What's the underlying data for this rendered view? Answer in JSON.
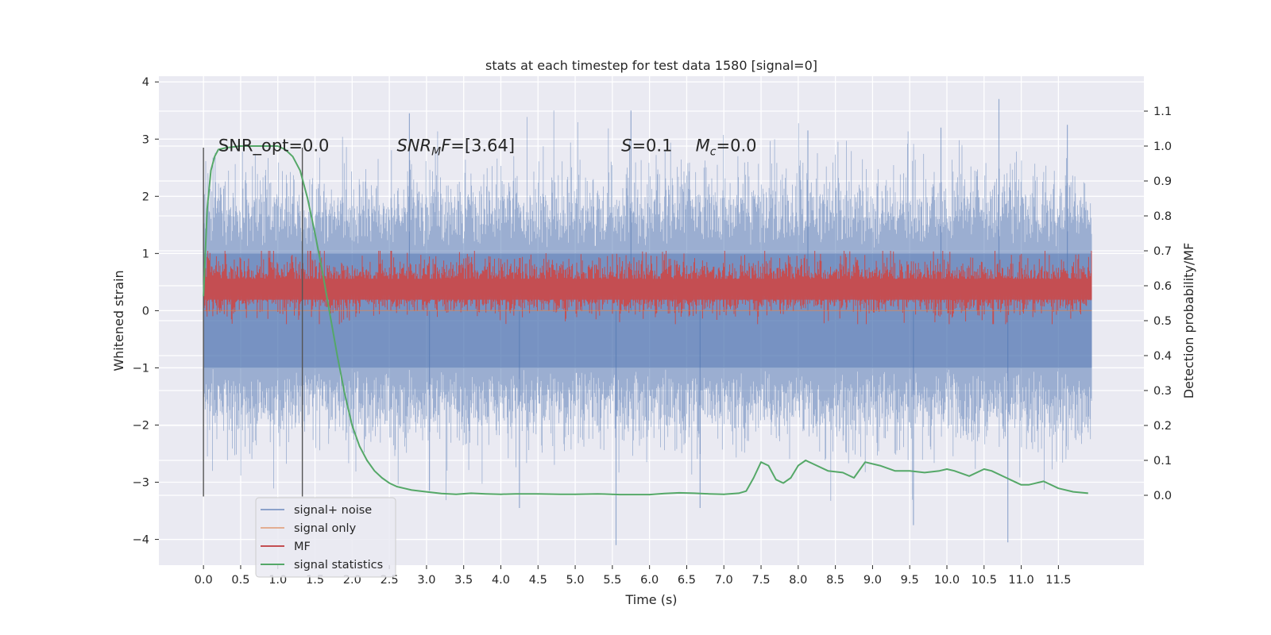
{
  "chart_data": {
    "type": "line",
    "title": "stats at each timestep for test data 1580 [signal=0]",
    "xlabel": "Time (s)",
    "ylabel": "Whitened strain",
    "y2label": "Detection probability/MF",
    "xlim": [
      -0.6,
      12.65
    ],
    "ylim": [
      -4.45,
      4.1
    ],
    "y2lim": [
      -0.2,
      1.2
    ],
    "x_ticks": [
      0.0,
      0.5,
      1.0,
      1.5,
      2.0,
      2.5,
      3.0,
      3.5,
      4.0,
      4.5,
      5.0,
      5.5,
      6.0,
      6.5,
      7.0,
      7.5,
      8.0,
      8.5,
      9.0,
      9.5,
      10.0,
      10.5,
      11.0,
      11.5
    ],
    "x_tick_labels": [
      "0.0",
      "0.5",
      "1.0",
      "1.5",
      "2.0",
      "2.5",
      "3.0",
      "3.5",
      "4.0",
      "4.5",
      "5.0",
      "5.5",
      "6.0",
      "6.5",
      "7.0",
      "7.5",
      "8.0",
      "8.5",
      "9.0",
      "9.5",
      "10.0",
      "10.5",
      "11.0",
      "11.5"
    ],
    "y_ticks": [
      -4,
      -3,
      -2,
      -1,
      0,
      1,
      2,
      3,
      4
    ],
    "y_tick_labels": [
      "−4",
      "−3",
      "−2",
      "−1",
      "0",
      "1",
      "2",
      "3",
      "4"
    ],
    "y2_ticks": [
      0.0,
      0.1,
      0.2,
      0.3,
      0.4,
      0.5,
      0.6,
      0.7,
      0.8,
      0.9,
      1.0,
      1.1
    ],
    "y2_tick_labels": [
      "0.0",
      "0.1",
      "0.2",
      "0.3",
      "0.4",
      "0.5",
      "0.6",
      "0.7",
      "0.8",
      "0.9",
      "1.0",
      "1.1"
    ],
    "grid": true,
    "legend_position": "lower-left",
    "vertical_lines": [
      {
        "x": 0.0,
        "y_from": -3.25,
        "y_to": 2.85
      },
      {
        "x": 1.33,
        "y_from": -3.25,
        "y_to": 2.85
      }
    ],
    "annotations": [
      {
        "text": "SNR_opt=0.0",
        "x": 0.2,
        "y": 2.8,
        "style": "normal"
      },
      {
        "text": "SNR",
        "sub": "M",
        "after": "F=[3.64]",
        "x": 2.6,
        "y": 2.8,
        "style": "math"
      },
      {
        "text": "S",
        "after": "=0.1",
        "x": 5.62,
        "y": 2.8,
        "style": "math"
      },
      {
        "text": "M",
        "sub": "c",
        "after": "=0.0",
        "x": 6.62,
        "y": 2.8,
        "style": "math"
      }
    ],
    "series": [
      {
        "name": "signal+ noise",
        "color": "#4c72b0",
        "alpha": 0.5,
        "axis": "left",
        "x_range": [
          0.0,
          11.95
        ],
        "style": "dense noise",
        "typical_range": [
          -1.4,
          1.6
        ],
        "notable_peaks": [
          [
            2.77,
            3.45
          ],
          [
            10.7,
            3.7
          ],
          [
            8.13,
            3.15
          ],
          [
            11.62,
            3.25
          ],
          [
            5.75,
            3.5
          ],
          [
            9.92,
            3.2
          ]
        ],
        "notable_troughs": [
          [
            5.55,
            -4.1
          ],
          [
            10.82,
            -4.05
          ],
          [
            9.55,
            -3.75
          ],
          [
            4.25,
            -3.45
          ],
          [
            6.68,
            -3.45
          ],
          [
            3.04,
            -3.15
          ]
        ]
      },
      {
        "name": "signal only",
        "color": "#dd8452",
        "axis": "left",
        "x": [
          0.0,
          11.95
        ],
        "y": [
          0.0,
          0.0
        ]
      },
      {
        "name": "MF",
        "color": "#c44e52",
        "axis": "right",
        "x_range": [
          0.0,
          11.95
        ],
        "style": "dense noise",
        "typical_range": [
          0.53,
          0.66
        ],
        "max": 0.7,
        "min": 0.49
      },
      {
        "name": "signal statistics",
        "color": "#55a868",
        "axis": "right",
        "x": [
          0.0,
          0.05,
          0.1,
          0.15,
          0.2,
          0.3,
          0.5,
          0.8,
          1.0,
          1.1,
          1.2,
          1.3,
          1.4,
          1.5,
          1.6,
          1.7,
          1.8,
          1.9,
          2.0,
          2.1,
          2.2,
          2.3,
          2.4,
          2.5,
          2.6,
          2.8,
          3.0,
          3.2,
          3.4,
          3.6,
          3.8,
          4.0,
          4.2,
          4.5,
          4.8,
          5.0,
          5.3,
          5.6,
          6.0,
          6.2,
          6.4,
          6.6,
          6.8,
          7.0,
          7.2,
          7.3,
          7.4,
          7.5,
          7.6,
          7.7,
          7.8,
          7.9,
          8.0,
          8.1,
          8.2,
          8.4,
          8.6,
          8.75,
          8.9,
          9.1,
          9.3,
          9.5,
          9.7,
          9.9,
          10.0,
          10.1,
          10.3,
          10.5,
          10.6,
          10.8,
          11.0,
          11.1,
          11.3,
          11.5,
          11.7,
          11.9
        ],
        "y": [
          0.57,
          0.82,
          0.93,
          0.97,
          0.99,
          0.995,
          1.0,
          1.0,
          1.0,
          0.99,
          0.97,
          0.93,
          0.85,
          0.75,
          0.64,
          0.52,
          0.4,
          0.29,
          0.2,
          0.14,
          0.1,
          0.07,
          0.05,
          0.035,
          0.025,
          0.015,
          0.01,
          0.005,
          0.003,
          0.006,
          0.004,
          0.003,
          0.004,
          0.004,
          0.003,
          0.003,
          0.004,
          0.002,
          0.002,
          0.005,
          0.007,
          0.006,
          0.004,
          0.003,
          0.006,
          0.012,
          0.05,
          0.095,
          0.085,
          0.045,
          0.035,
          0.05,
          0.085,
          0.1,
          0.09,
          0.07,
          0.065,
          0.05,
          0.095,
          0.085,
          0.07,
          0.07,
          0.065,
          0.07,
          0.075,
          0.07,
          0.055,
          0.075,
          0.07,
          0.05,
          0.03,
          0.03,
          0.04,
          0.02,
          0.01,
          0.006
        ]
      }
    ]
  }
}
